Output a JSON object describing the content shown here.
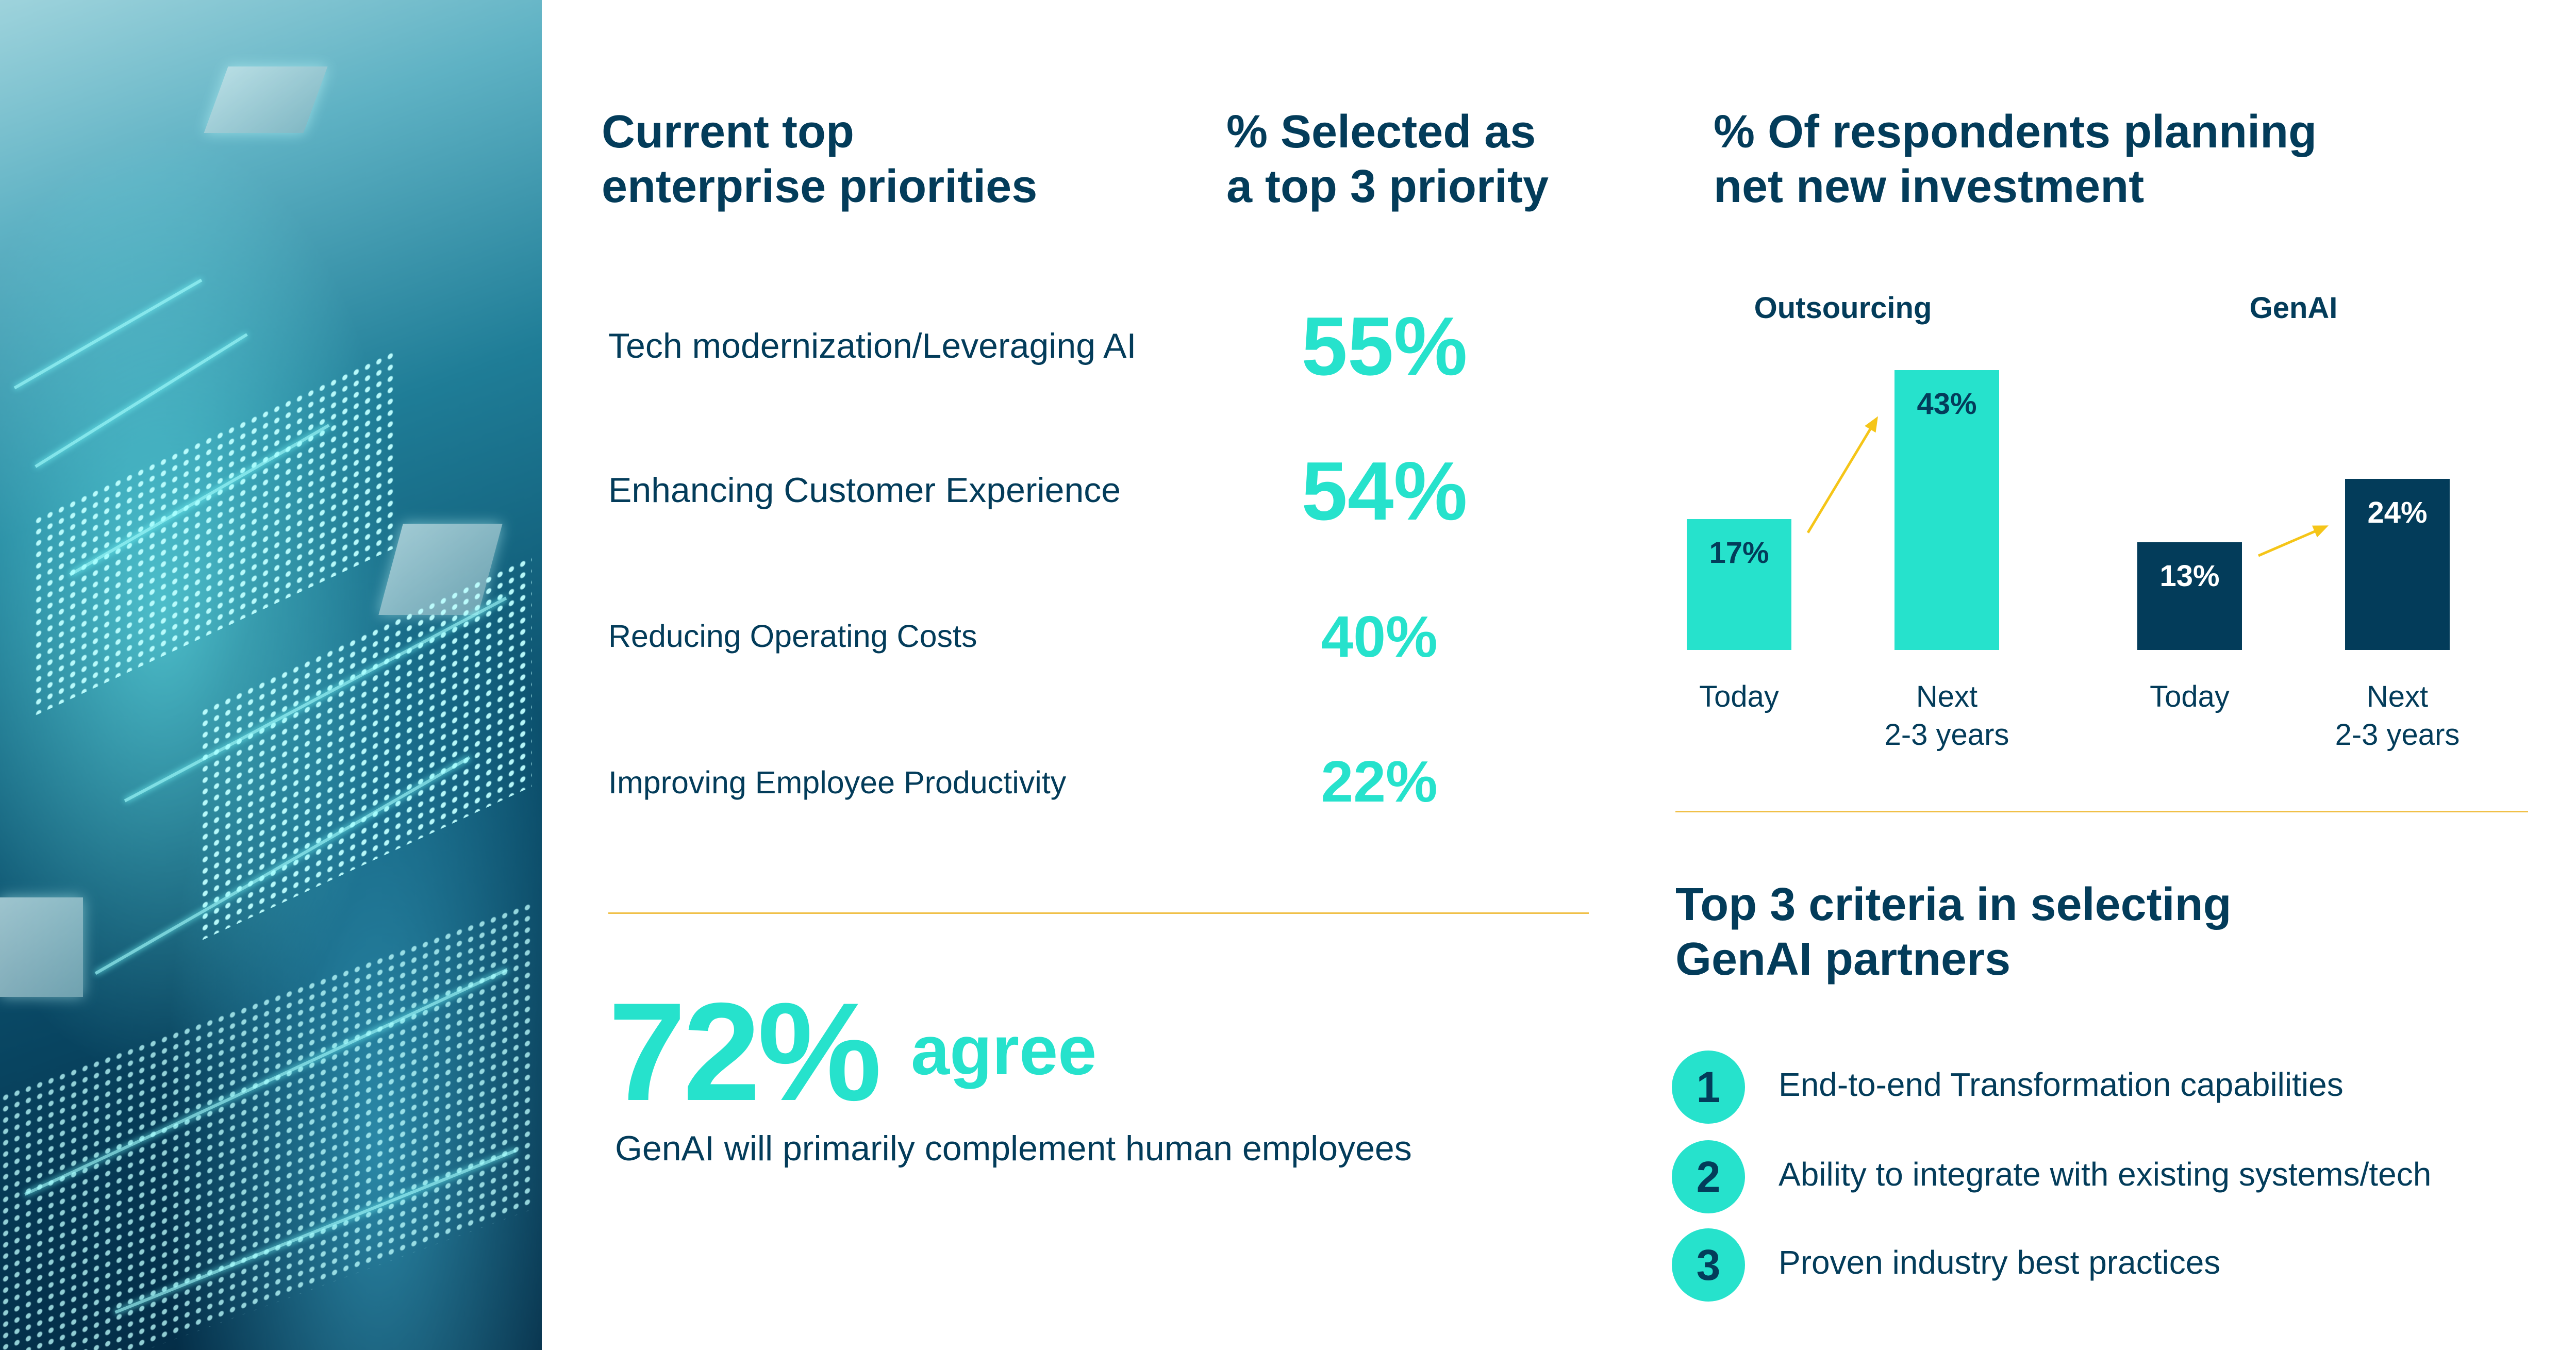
{
  "priorities": {
    "heading": [
      "Current top",
      "enterprise priorities"
    ],
    "value_heading": [
      "% Selected as",
      "a top 3 priority"
    ],
    "items": [
      {
        "label": "Tech modernization/Leveraging AI",
        "value": "55%"
      },
      {
        "label": "Enhancing Customer Experience",
        "value": "54%"
      },
      {
        "label": "Reducing Operating Costs",
        "value": "40%"
      },
      {
        "label": "Improving Employee Productivity",
        "value": "22%"
      }
    ]
  },
  "agree": {
    "value": "72%",
    "word": "agree",
    "caption": "GenAI will primarily complement human employees"
  },
  "investment": {
    "heading": [
      "% Of respondents planning",
      "net new investment"
    ]
  },
  "chart_data": {
    "type": "bar",
    "title": "% Of respondents planning net new investment",
    "categories": [
      "Today",
      "Next 2-3 years"
    ],
    "category_lines": [
      [
        "Today"
      ],
      [
        "Next",
        "2-3 years"
      ]
    ],
    "series": [
      {
        "name": "Outsourcing",
        "values": [
          17,
          43
        ],
        "labels": [
          "17%",
          "43%"
        ],
        "color": "#26e2cc",
        "label_color": "#033c5a"
      },
      {
        "name": "GenAI",
        "values": [
          13,
          24
        ],
        "labels": [
          "13%",
          "24%"
        ],
        "color": "#033c5a",
        "label_color": "#ffffff"
      }
    ]
  },
  "criteria": {
    "heading": [
      "Top 3 criteria in selecting",
      "GenAI partners"
    ],
    "items": [
      {
        "num": "1",
        "text": "End-to-end Transformation capabilities"
      },
      {
        "num": "2",
        "text": "Ability to integrate with existing systems/tech"
      },
      {
        "num": "3",
        "text": "Proven industry best practices"
      }
    ]
  },
  "colors": {
    "teal": "#26e2cc",
    "navy": "#033c5a",
    "accent": "#f5c518"
  }
}
